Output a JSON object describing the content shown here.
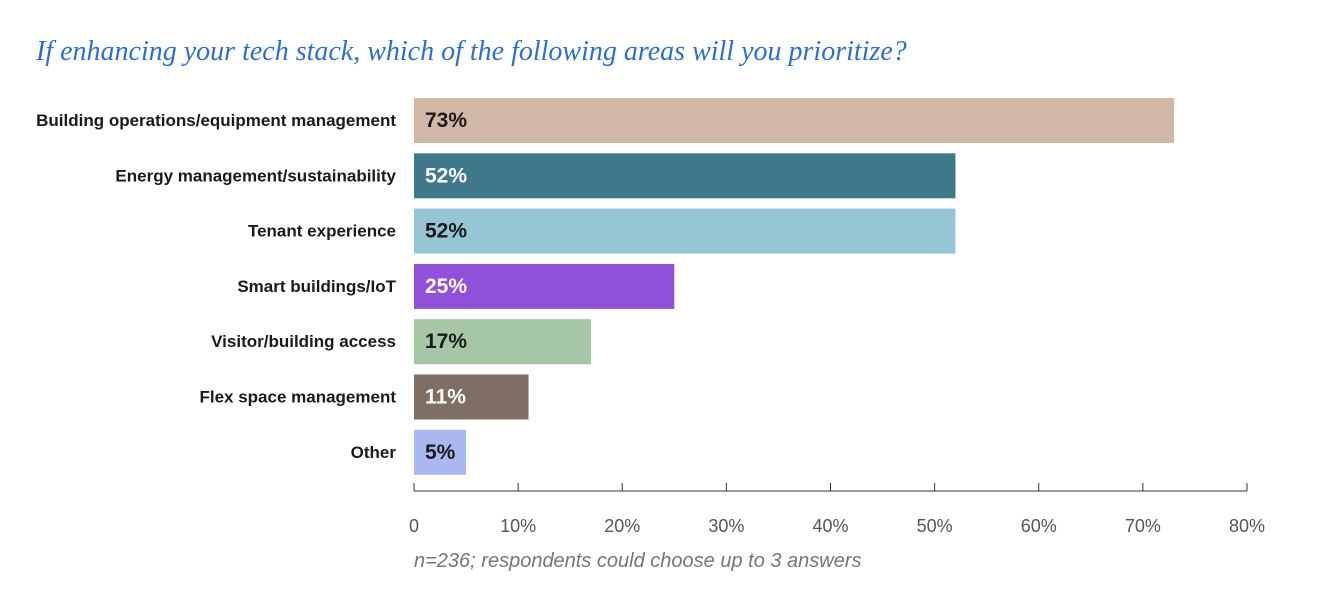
{
  "chart_data": {
    "type": "bar",
    "orientation": "horizontal",
    "title": "If enhancing your tech stack, which of the following areas will you prioritize?",
    "note": "n=236; respondents could choose up to 3 answers",
    "categories": [
      "Building operations/equipment management",
      "Energy management/sustainability",
      "Tenant experience",
      "Smart buildings/IoT",
      "Visitor/building access",
      "Flex space management",
      "Other"
    ],
    "values": [
      73,
      52,
      52,
      25,
      17,
      11,
      5
    ],
    "value_labels": [
      "73%",
      "52%",
      "52%",
      "25%",
      "17%",
      "11%",
      "5%"
    ],
    "bar_colors": [
      "#d1b8a6",
      "#3e788a",
      "#96c6d6",
      "#9150d8",
      "#a6c7a6",
      "#7e6e63",
      "#aab7f0"
    ],
    "label_colors": [
      "#1a1a1a",
      "#ffffff",
      "#1a1a1a",
      "#ffffff",
      "#1a1a1a",
      "#ffffff",
      "#1a1a1a"
    ],
    "xlim": [
      0,
      80
    ],
    "xticks": [
      0,
      10,
      20,
      30,
      40,
      50,
      60,
      70,
      80
    ],
    "xtick_labels": [
      "0",
      "10%",
      "20%",
      "30%",
      "40%",
      "50%",
      "60%",
      "70%",
      "80%"
    ],
    "xlabel": "",
    "ylabel": "",
    "grid": false,
    "legend": "none"
  },
  "colors": {
    "title": "#2f6fc4",
    "axis": "#333333",
    "tick_text": "#555555",
    "note": "#767676"
  }
}
